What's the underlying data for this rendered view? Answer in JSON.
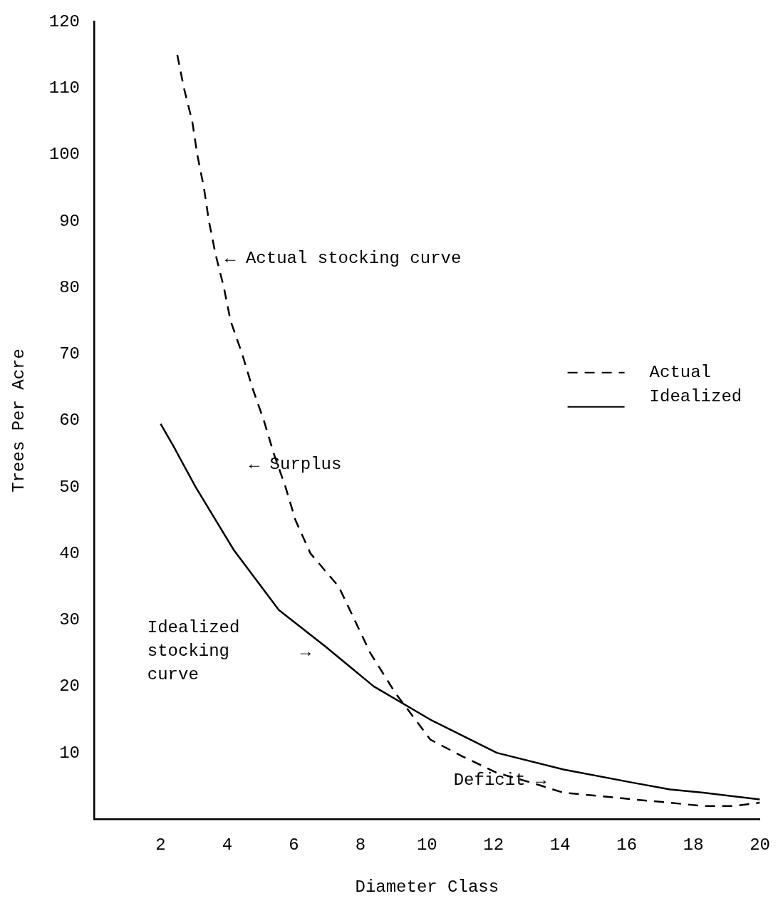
{
  "chart_data": {
    "type": "line",
    "xlabel": "Diameter Class",
    "ylabel": "Trees Per Acre",
    "xlim": [
      0,
      20
    ],
    "xticks": [
      2,
      4,
      6,
      8,
      10,
      12,
      14,
      16,
      18,
      20
    ],
    "ylim": [
      0,
      120
    ],
    "yticks": [
      10,
      20,
      30,
      40,
      50,
      60,
      70,
      80,
      90,
      100,
      110,
      120
    ],
    "grid": false,
    "legend": "right",
    "marker": "none",
    "series": [
      {
        "name": "Actual",
        "color": "#000000",
        "line_style": "dashed",
        "x": [
          2.5,
          2.7,
          2.95,
          3.1,
          3.3,
          3.45,
          3.65,
          3.9,
          4.1,
          4.45,
          4.75,
          5.1,
          5.4,
          5.75,
          6.05,
          6.5,
          7.35,
          8.3,
          9.05,
          9.8,
          10.1,
          11.05,
          12.1,
          13.15,
          14.1,
          15.2,
          16.2,
          17.3,
          18.3,
          19.2,
          20
        ],
        "values": [
          115,
          110,
          105,
          100,
          95,
          90,
          85,
          80,
          75,
          70,
          65,
          60,
          55,
          50,
          45,
          40,
          35,
          25,
          19,
          14,
          12,
          9.5,
          7,
          5.5,
          4,
          3.5,
          3,
          2.5,
          2,
          2,
          2.5
        ]
      },
      {
        "name": "Idealized",
        "color": "#000000",
        "line_style": "solid",
        "x": [
          2,
          2.4,
          3.05,
          4.2,
          5.55,
          6.95,
          8.4,
          10.1,
          12.1,
          14.1,
          16.2,
          17.3,
          18.3,
          20
        ],
        "values": [
          59.5,
          56,
          50,
          40.5,
          31.5,
          26,
          20,
          15,
          10,
          7.5,
          5.5,
          4.5,
          4,
          3
        ]
      }
    ],
    "annotations": [
      "← Actual stocking curve",
      "← Surplus",
      "Idealized\nstocking\ncurve",
      "→",
      "Deficit →"
    ]
  }
}
